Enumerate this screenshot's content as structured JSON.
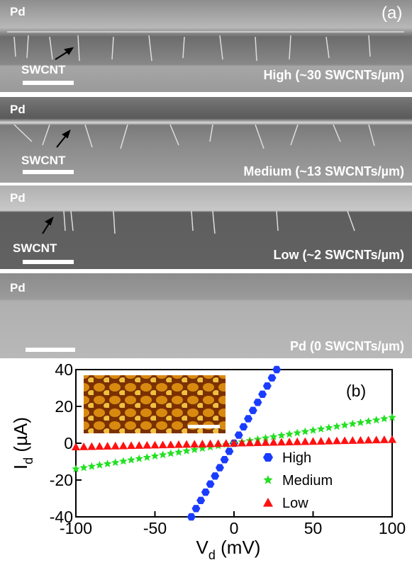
{
  "figure_a": {
    "panel_label": "(a)",
    "panels": [
      {
        "material": "Pd",
        "tube": "SWCNT",
        "caption": "High (~30 SWCNTs/µm)"
      },
      {
        "material": "Pd",
        "tube": "SWCNT",
        "caption": "Medium (~13 SWCNTs/µm)"
      },
      {
        "material": "Pd",
        "tube": "SWCNT",
        "caption": "Low (~2 SWCNTs/µm)"
      },
      {
        "material": "Pd",
        "caption": "Pd (0 SWCNTs/µm)"
      }
    ]
  },
  "chart_data": {
    "type": "scatter",
    "panel_label": "(b)",
    "xlabel": [
      "V",
      "d",
      " (mV)"
    ],
    "ylabel": [
      "I",
      "d",
      " (µA)"
    ],
    "xlim": [
      -100,
      100
    ],
    "ylim": [
      -40,
      40
    ],
    "xticks": [
      -100,
      -50,
      0,
      50,
      100
    ],
    "yticks": [
      -40,
      -20,
      0,
      20,
      40
    ],
    "legend": "right",
    "series": [
      {
        "name": "High",
        "color": "#1a3cff",
        "marker": "hexagon",
        "x": [
          -27,
          -24,
          -21,
          -18,
          -15,
          -12,
          -9,
          -6,
          -3,
          0,
          3,
          6,
          9,
          12,
          15,
          18,
          21,
          24,
          27
        ],
        "values": [
          -40,
          -35.5,
          -31.1,
          -26.6,
          -22.2,
          -17.8,
          -13.3,
          -8.9,
          -4.4,
          0,
          4.4,
          8.9,
          13.3,
          17.8,
          22.2,
          26.6,
          31.1,
          35.5,
          40
        ]
      },
      {
        "name": "Medium",
        "color": "#22e022",
        "marker": "star",
        "x": [
          -100,
          -95,
          -90,
          -85,
          -80,
          -75,
          -70,
          -65,
          -60,
          -55,
          -50,
          -45,
          -40,
          -35,
          -30,
          -25,
          -20,
          -15,
          -10,
          -5,
          0,
          5,
          10,
          15,
          20,
          25,
          30,
          35,
          40,
          45,
          50,
          55,
          60,
          65,
          70,
          75,
          80,
          85,
          90,
          95,
          100
        ],
        "values": [
          -14,
          -13.3,
          -12.6,
          -11.9,
          -11.2,
          -10.5,
          -9.8,
          -9.1,
          -8.4,
          -7.7,
          -7,
          -6.3,
          -5.6,
          -4.9,
          -4.2,
          -3.5,
          -2.8,
          -2.1,
          -1.4,
          -0.7,
          0,
          0.7,
          1.4,
          2.1,
          2.8,
          3.5,
          4.2,
          4.9,
          5.6,
          6.3,
          7,
          7.7,
          8.4,
          9.1,
          9.8,
          10.5,
          11.2,
          11.9,
          12.6,
          13.3,
          14
        ]
      },
      {
        "name": "Low",
        "color": "#ff1010",
        "marker": "triangle",
        "x": [
          -100,
          -95,
          -90,
          -85,
          -80,
          -75,
          -70,
          -65,
          -60,
          -55,
          -50,
          -45,
          -40,
          -35,
          -30,
          -25,
          -20,
          -15,
          -10,
          -5,
          0,
          5,
          10,
          15,
          20,
          25,
          30,
          35,
          40,
          45,
          50,
          55,
          60,
          65,
          70,
          75,
          80,
          85,
          90,
          95,
          100
        ],
        "values": [
          -2,
          -1.9,
          -1.8,
          -1.7,
          -1.6,
          -1.5,
          -1.4,
          -1.3,
          -1.2,
          -1.1,
          -1,
          -0.9,
          -0.8,
          -0.7,
          -0.6,
          -0.5,
          -0.4,
          -0.3,
          -0.2,
          -0.1,
          0,
          0.1,
          0.2,
          0.3,
          0.4,
          0.5,
          0.6,
          0.7,
          0.8,
          0.9,
          1,
          1.1,
          1.2,
          1.3,
          1.4,
          1.5,
          1.6,
          1.7,
          1.8,
          1.9,
          2
        ]
      }
    ]
  }
}
